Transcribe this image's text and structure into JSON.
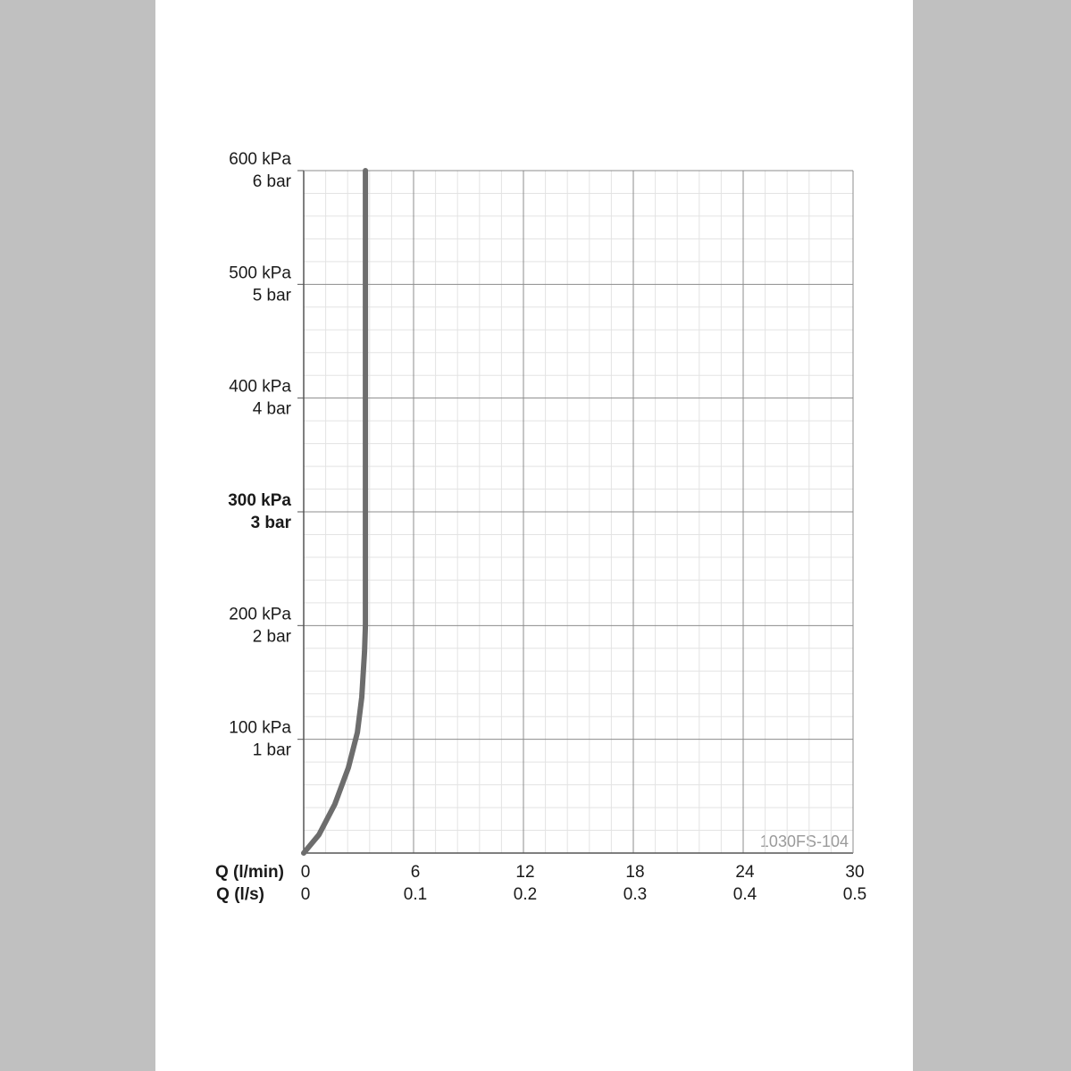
{
  "chart_data": {
    "type": "line",
    "xlabel": "Q (l/min)",
    "x2label": "Q (l/s)",
    "annotation": "1030FS-104",
    "xlim": [
      0,
      30
    ],
    "xticks": [
      0,
      6,
      12,
      18,
      24,
      30
    ],
    "x2ticks": [
      0,
      {
        "value": 6,
        "label": "0.1"
      },
      {
        "value": 12,
        "label": "0.2"
      },
      {
        "value": 18,
        "label": "0.3"
      },
      {
        "value": 24,
        "label": "0.4"
      },
      {
        "value": 30,
        "label": "0.5"
      }
    ],
    "ylim": [
      0,
      600
    ],
    "yticks": [
      {
        "value": 100,
        "label": "100 kPa"
      },
      {
        "value": 200,
        "label": "200 kPa"
      },
      {
        "value": 300,
        "label": "300 kPa"
      },
      {
        "value": 400,
        "label": "400 kPa"
      },
      {
        "value": 500,
        "label": "500 kPa"
      },
      {
        "value": 600,
        "label": "600 kPa"
      }
    ],
    "y2ticks": [
      {
        "value": 100,
        "label": "1 bar"
      },
      {
        "value": 200,
        "label": "2 bar"
      },
      {
        "value": 300,
        "label": "3 bar"
      },
      {
        "value": 400,
        "label": "4 bar"
      },
      {
        "value": 500,
        "label": "5 bar"
      },
      {
        "value": 600,
        "label": "6 bar"
      }
    ],
    "highlight_ytick": 300,
    "grid": true,
    "series": [
      {
        "color": "#6d6d6d",
        "x": [
          0,
          0.83,
          1.7,
          2.44,
          2.93,
          3.17,
          3.32,
          3.37,
          3.37
        ],
        "values": [
          0,
          16,
          43,
          75,
          106,
          137,
          177,
          200,
          600
        ]
      }
    ]
  }
}
